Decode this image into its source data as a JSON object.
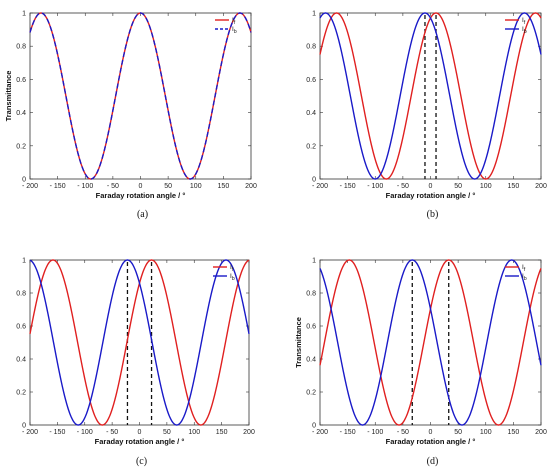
{
  "chart_data": [
    {
      "panel_label": "(a)",
      "type": "line",
      "xlabel": "Faraday rotation angle / °",
      "ylabel": "Transmittance",
      "xlim": [
        -200,
        200
      ],
      "ylim": [
        0,
        1
      ],
      "x_ticks": [
        -200,
        -150,
        -100,
        -50,
        0,
        50,
        100,
        150,
        200
      ],
      "x_tick_labels": [
        "- 200",
        "- 150",
        "- 100",
        "- 50",
        "0",
        "50",
        "100",
        "150",
        "200"
      ],
      "y_ticks": [
        0,
        0.2,
        0.4,
        0.6,
        0.8,
        1
      ],
      "y_tick_labels": [
        "0",
        "0.2",
        "0.4",
        "0.6",
        "0.8",
        "1"
      ],
      "grid": false,
      "legend_position": "top-right",
      "series": [
        {
          "name": "If",
          "name_main": "I",
          "name_sub": "f",
          "color": "#e02020",
          "dash": "solid",
          "peak_x": 0
        },
        {
          "name": "Ib",
          "name_main": "I",
          "name_sub": "b",
          "color": "#1a1ac8",
          "dash": "dashed",
          "peak_x": 0
        }
      ],
      "vlines": []
    },
    {
      "panel_label": "(b)",
      "type": "line",
      "xlabel": "Faraday rotation angle / °",
      "ylabel": "",
      "xlim": [
        -200,
        200
      ],
      "ylim": [
        0,
        1
      ],
      "x_ticks": [
        -200,
        -150,
        -100,
        -50,
        0,
        50,
        100,
        150,
        200
      ],
      "x_tick_labels": [
        "- 200",
        "- 150",
        "- 100",
        "- 50",
        "0",
        "50",
        "100",
        "150",
        "200"
      ],
      "y_ticks": [
        0,
        0.2,
        0.4,
        0.6,
        0.8,
        1
      ],
      "y_tick_labels": [
        "0",
        "0.2",
        "0.4",
        "0.6",
        "0.8",
        "1"
      ],
      "grid": false,
      "legend_position": "top-right",
      "series": [
        {
          "name": "If",
          "name_main": "I",
          "name_sub": "f",
          "color": "#e02020",
          "dash": "solid",
          "peak_x": 10
        },
        {
          "name": "Ib",
          "name_main": "I",
          "name_sub": "b",
          "color": "#1a1ac8",
          "dash": "solid",
          "peak_x": -10
        }
      ],
      "vlines": [
        -10,
        10
      ]
    },
    {
      "panel_label": "(c)",
      "type": "line",
      "xlabel": "Faraday rotation angle / °",
      "ylabel": "",
      "xlim": [
        -200,
        200
      ],
      "ylim": [
        0,
        1
      ],
      "x_ticks": [
        -200,
        -150,
        -100,
        -50,
        0,
        50,
        100,
        150,
        200
      ],
      "x_tick_labels": [
        "- 200",
        "- 150",
        "- 100",
        "- 50",
        "0",
        "50",
        "100",
        "150",
        "200"
      ],
      "y_ticks": [
        0,
        0.2,
        0.4,
        0.6,
        0.8,
        1
      ],
      "y_tick_labels": [
        "0",
        "0.2",
        "0.4",
        "0.6",
        "0.8",
        "1"
      ],
      "grid": false,
      "legend_position": "top-right",
      "series": [
        {
          "name": "If",
          "name_main": "I",
          "name_sub": "f",
          "color": "#e02020",
          "dash": "solid",
          "peak_x": 22
        },
        {
          "name": "Ib",
          "name_main": "I",
          "name_sub": "b",
          "color": "#1a1ac8",
          "dash": "solid",
          "peak_x": -22
        }
      ],
      "vlines": [
        -22,
        22
      ]
    },
    {
      "panel_label": "(d)",
      "type": "line",
      "xlabel": "Faraday rotation angle / °",
      "ylabel": "Transmittance",
      "xlim": [
        -200,
        200
      ],
      "ylim": [
        0,
        1
      ],
      "x_ticks": [
        -200,
        -150,
        -100,
        -50,
        0,
        50,
        100,
        150,
        200
      ],
      "x_tick_labels": [
        "- 200",
        "- 150",
        "- 100",
        "- 50",
        "0",
        "50",
        "100",
        "150",
        "200"
      ],
      "y_ticks": [
        0,
        0.2,
        0.4,
        0.6,
        0.8,
        1
      ],
      "y_tick_labels": [
        "0",
        "0.2",
        "0.4",
        "0.6",
        "0.8",
        "1"
      ],
      "grid": false,
      "legend_position": "top-right",
      "series": [
        {
          "name": "If",
          "name_main": "I",
          "name_sub": "f",
          "color": "#e02020",
          "dash": "solid",
          "peak_x": 33
        },
        {
          "name": "Ib",
          "name_main": "I",
          "name_sub": "b",
          "color": "#1a1ac8",
          "dash": "solid",
          "peak_x": -33
        }
      ],
      "vlines": [
        -33,
        33
      ]
    }
  ]
}
